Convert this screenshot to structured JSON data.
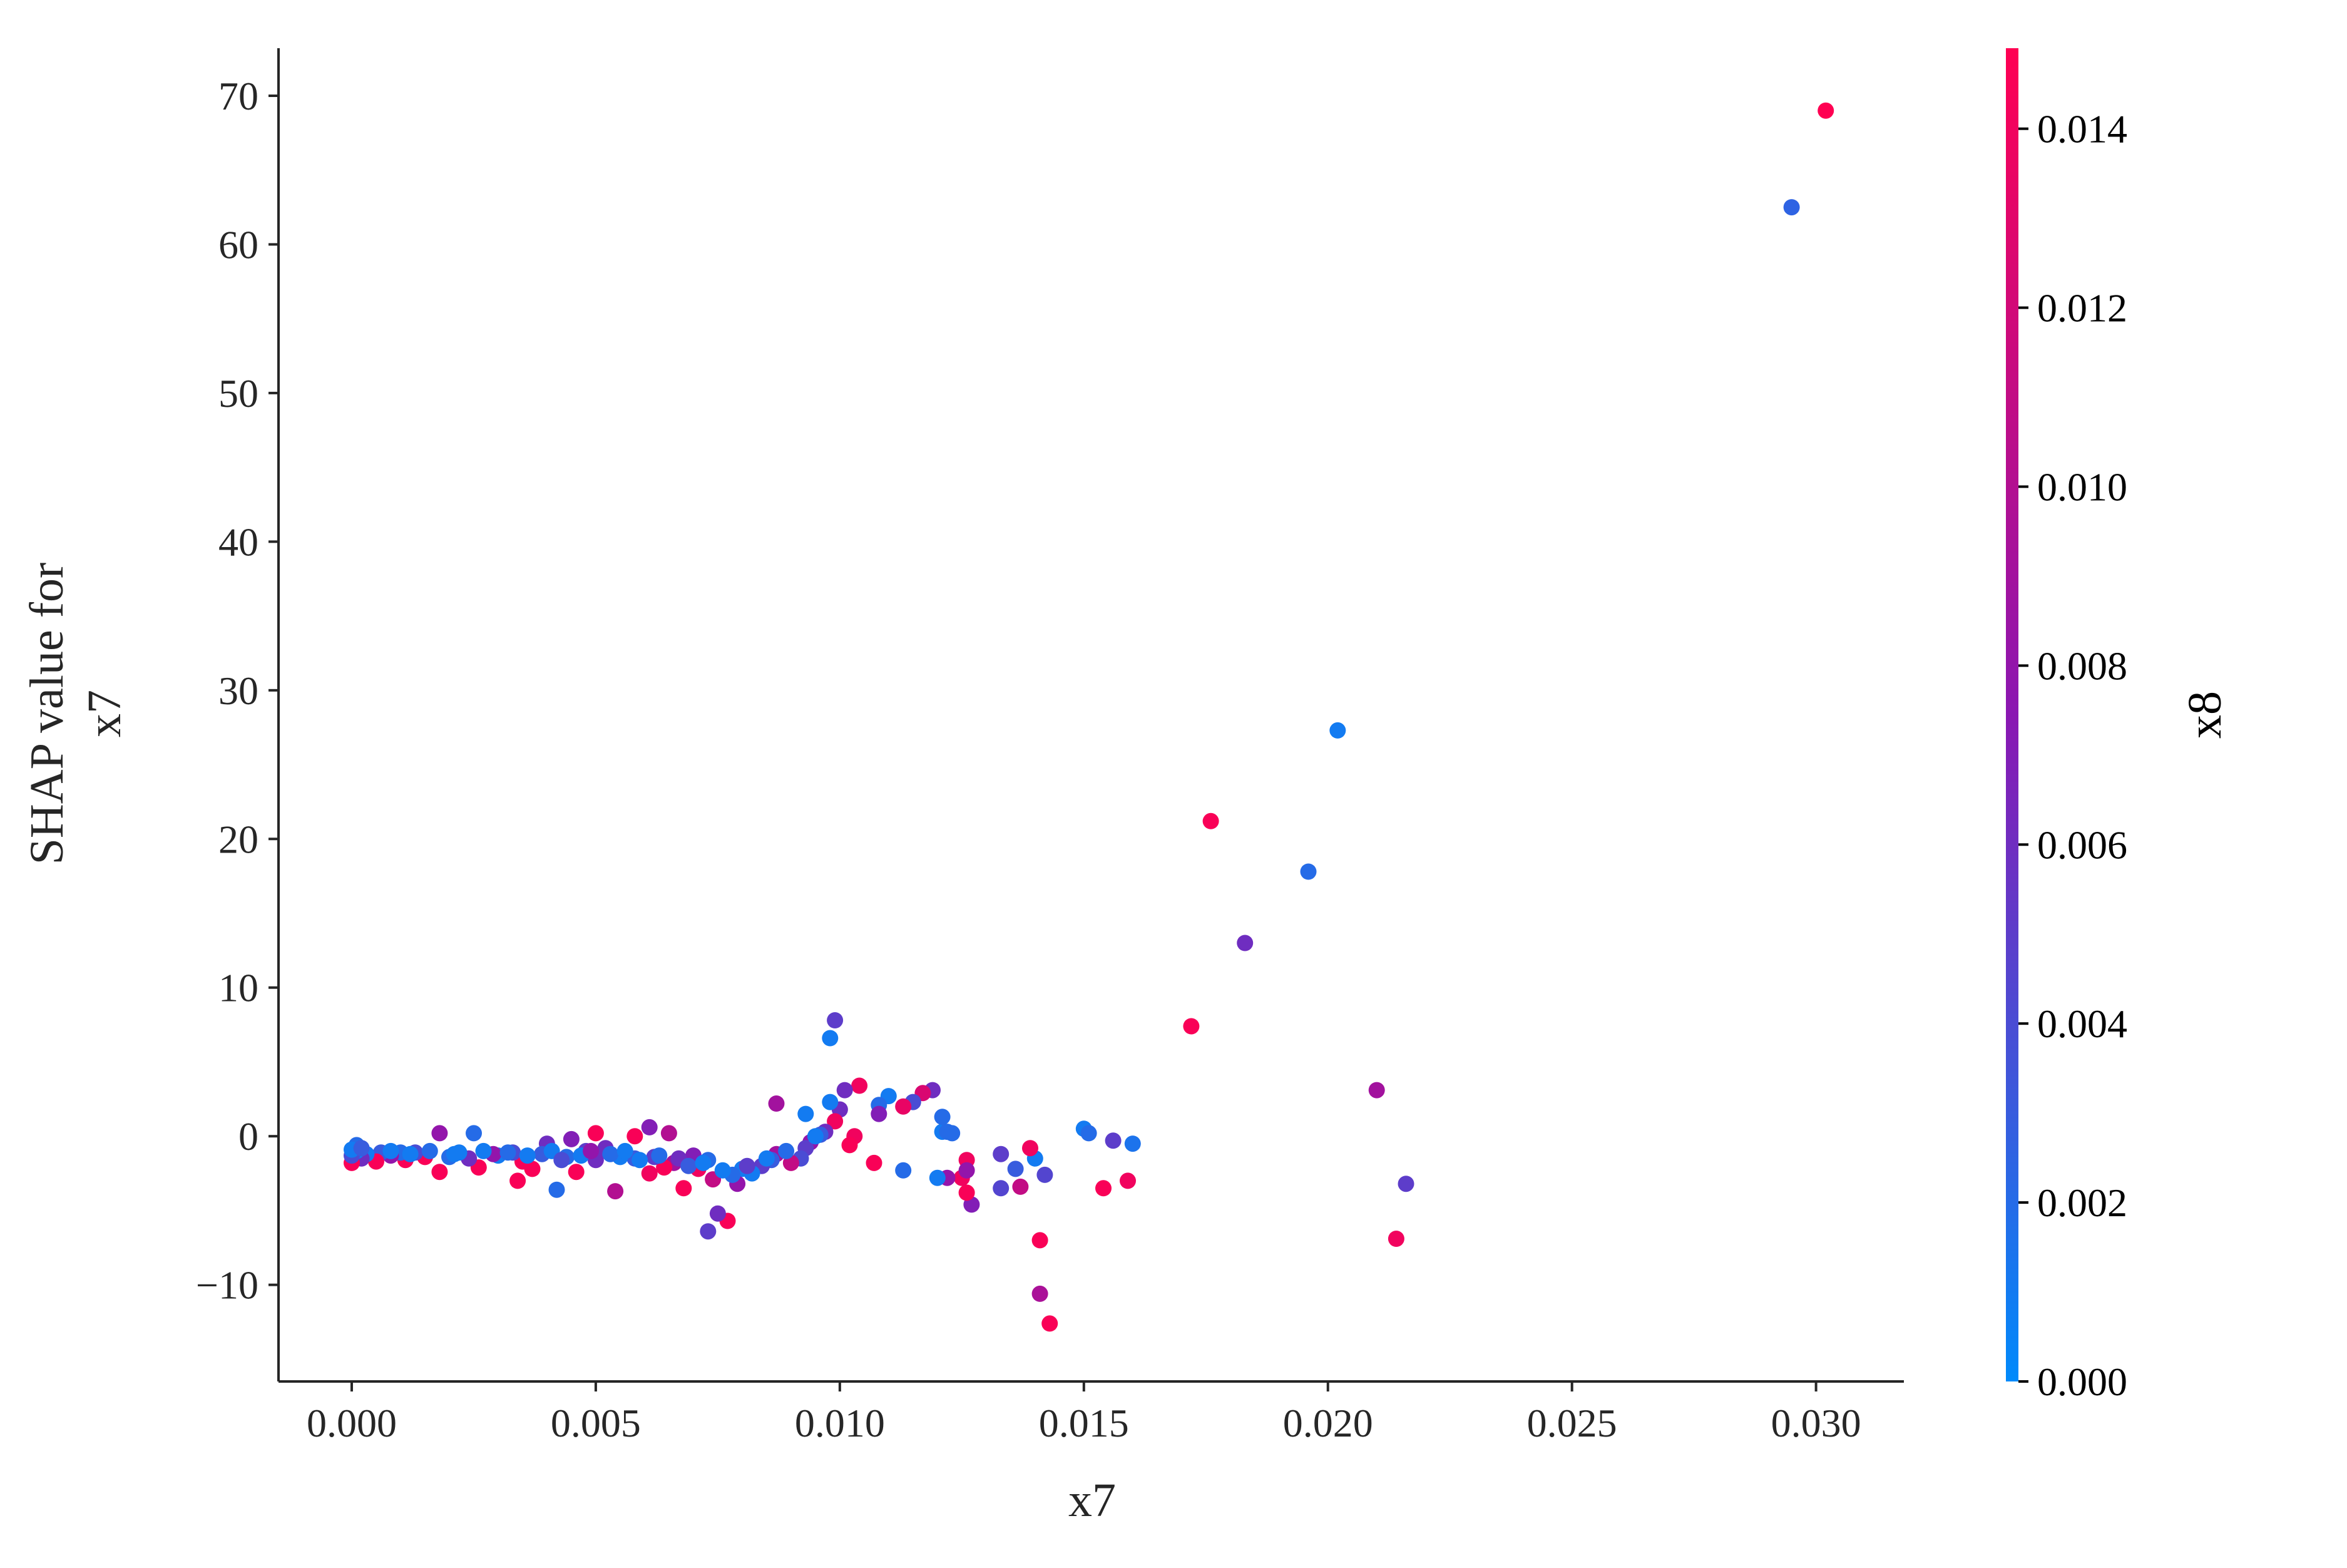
{
  "chart_data": {
    "type": "scatter",
    "title": "",
    "xlabel": "x7",
    "ylabel_lines": [
      "SHAP value for",
      "x7"
    ],
    "xlim": [
      -0.0015,
      0.0318
    ],
    "ylim": [
      -16.5,
      73.2
    ],
    "x_ticks": [
      0.0,
      0.005,
      0.01,
      0.015,
      0.02,
      0.025,
      0.03
    ],
    "x_tick_labels": [
      "0.000",
      "0.005",
      "0.010",
      "0.015",
      "0.020",
      "0.025",
      "0.030"
    ],
    "y_ticks": [
      -10,
      0,
      10,
      20,
      30,
      40,
      50,
      60,
      70
    ],
    "y_tick_labels": [
      "−10",
      "0",
      "10",
      "20",
      "30",
      "40",
      "50",
      "60",
      "70"
    ],
    "grid": false,
    "colorbar": {
      "label": "x8",
      "range": [
        0.0,
        0.0149
      ],
      "ticks": [
        0.0,
        0.002,
        0.004,
        0.006,
        0.008,
        0.01,
        0.012,
        0.014
      ],
      "tick_labels": [
        "0.000",
        "0.002",
        "0.004",
        "0.006",
        "0.008",
        "0.010",
        "0.012",
        "0.014"
      ],
      "low_color": "#008afb",
      "mid_color": "#8a17b2",
      "high_color": "#ff0052"
    },
    "points": [
      {
        "x": 0.0302,
        "y": 69.0,
        "c": 0.0149
      },
      {
        "x": 0.0295,
        "y": 62.5,
        "c": 0.0025
      },
      {
        "x": 0.0202,
        "y": 27.3,
        "c": 0.001
      },
      {
        "x": 0.0176,
        "y": 21.2,
        "c": 0.0145
      },
      {
        "x": 0.0196,
        "y": 17.8,
        "c": 0.002
      },
      {
        "x": 0.0183,
        "y": 13.0,
        "c": 0.006
      },
      {
        "x": 0.0172,
        "y": 7.4,
        "c": 0.0145
      },
      {
        "x": 0.021,
        "y": 3.1,
        "c": 0.009
      },
      {
        "x": 0.0216,
        "y": -3.2,
        "c": 0.005
      },
      {
        "x": 0.0214,
        "y": -6.9,
        "c": 0.014
      },
      {
        "x": 0.016,
        "y": -0.5,
        "c": 0.0015
      },
      {
        "x": 0.0156,
        "y": -0.3,
        "c": 0.005
      },
      {
        "x": 0.015,
        "y": 0.5,
        "c": 0.001
      },
      {
        "x": 0.0151,
        "y": 0.2,
        "c": 0.002
      },
      {
        "x": 0.0154,
        "y": -3.5,
        "c": 0.0145
      },
      {
        "x": 0.0159,
        "y": -3.0,
        "c": 0.014
      },
      {
        "x": 0.0143,
        "y": -12.6,
        "c": 0.0145
      },
      {
        "x": 0.0141,
        "y": -10.6,
        "c": 0.0095
      },
      {
        "x": 0.0141,
        "y": -7.0,
        "c": 0.0145
      },
      {
        "x": 0.0142,
        "y": -2.6,
        "c": 0.0045
      },
      {
        "x": 0.014,
        "y": -1.5,
        "c": 0.001
      },
      {
        "x": 0.0139,
        "y": -0.8,
        "c": 0.014
      },
      {
        "x": 0.0136,
        "y": -2.2,
        "c": 0.003
      },
      {
        "x": 0.0137,
        "y": -3.4,
        "c": 0.011
      },
      {
        "x": 0.0133,
        "y": -3.5,
        "c": 0.0045
      },
      {
        "x": 0.0133,
        "y": -1.2,
        "c": 0.005
      },
      {
        "x": 0.0127,
        "y": -4.6,
        "c": 0.007
      },
      {
        "x": 0.0126,
        "y": -3.8,
        "c": 0.0145
      },
      {
        "x": 0.0125,
        "y": -2.8,
        "c": 0.014
      },
      {
        "x": 0.0126,
        "y": -1.6,
        "c": 0.014
      },
      {
        "x": 0.0126,
        "y": -2.3,
        "c": 0.008
      },
      {
        "x": 0.0122,
        "y": -2.8,
        "c": 0.008
      },
      {
        "x": 0.012,
        "y": -2.8,
        "c": 0.001
      },
      {
        "x": 0.0113,
        "y": -2.3,
        "c": 0.002
      },
      {
        "x": 0.0121,
        "y": 0.3,
        "c": 0.001
      },
      {
        "x": 0.0122,
        "y": 0.3,
        "c": 0.002
      },
      {
        "x": 0.0123,
        "y": 0.2,
        "c": 0.002
      },
      {
        "x": 0.0121,
        "y": 1.3,
        "c": 0.002
      },
      {
        "x": 0.0119,
        "y": 3.1,
        "c": 0.006
      },
      {
        "x": 0.0117,
        "y": 2.9,
        "c": 0.0125
      },
      {
        "x": 0.0115,
        "y": 2.3,
        "c": 0.004
      },
      {
        "x": 0.0113,
        "y": 2.0,
        "c": 0.0135
      },
      {
        "x": 0.011,
        "y": 2.7,
        "c": 0.001
      },
      {
        "x": 0.0108,
        "y": 2.1,
        "c": 0.002
      },
      {
        "x": 0.0108,
        "y": 1.5,
        "c": 0.007
      },
      {
        "x": 0.0107,
        "y": -1.8,
        "c": 0.0145
      },
      {
        "x": 0.0104,
        "y": 3.4,
        "c": 0.014
      },
      {
        "x": 0.0101,
        "y": 3.1,
        "c": 0.006
      },
      {
        "x": 0.01,
        "y": 1.8,
        "c": 0.006
      },
      {
        "x": 0.0098,
        "y": 2.3,
        "c": 0.001
      },
      {
        "x": 0.0099,
        "y": 7.8,
        "c": 0.005
      },
      {
        "x": 0.0098,
        "y": 6.6,
        "c": 0.001
      },
      {
        "x": 0.0103,
        "y": 0.0,
        "c": 0.014
      },
      {
        "x": 0.0102,
        "y": -0.6,
        "c": 0.0145
      },
      {
        "x": 0.0099,
        "y": 1.0,
        "c": 0.014
      },
      {
        "x": 0.0097,
        "y": 0.3,
        "c": 0.006
      },
      {
        "x": 0.0096,
        "y": 0.1,
        "c": 0.003
      },
      {
        "x": 0.0094,
        "y": -0.4,
        "c": 0.008
      },
      {
        "x": 0.0093,
        "y": 1.5,
        "c": 0.001
      },
      {
        "x": 0.0093,
        "y": -0.8,
        "c": 0.005
      },
      {
        "x": 0.0092,
        "y": -1.5,
        "c": 0.004
      },
      {
        "x": 0.009,
        "y": -1.8,
        "c": 0.011
      },
      {
        "x": 0.0087,
        "y": 2.2,
        "c": 0.009
      },
      {
        "x": 0.0087,
        "y": -1.2,
        "c": 0.009
      },
      {
        "x": 0.0086,
        "y": -1.6,
        "c": 0.003
      },
      {
        "x": 0.0084,
        "y": -2.0,
        "c": 0.005
      },
      {
        "x": 0.0082,
        "y": -2.5,
        "c": 0.001
      },
      {
        "x": 0.008,
        "y": -2.2,
        "c": 0.001
      },
      {
        "x": 0.0079,
        "y": -3.2,
        "c": 0.008
      },
      {
        "x": 0.0078,
        "y": -2.6,
        "c": 0.002
      },
      {
        "x": 0.0077,
        "y": -5.7,
        "c": 0.0145
      },
      {
        "x": 0.0075,
        "y": -5.2,
        "c": 0.006
      },
      {
        "x": 0.0073,
        "y": -6.4,
        "c": 0.005
      },
      {
        "x": 0.0074,
        "y": -2.9,
        "c": 0.011
      },
      {
        "x": 0.0073,
        "y": -1.6,
        "c": 0.002
      },
      {
        "x": 0.0071,
        "y": -2.2,
        "c": 0.014
      },
      {
        "x": 0.007,
        "y": -1.3,
        "c": 0.007
      },
      {
        "x": 0.0068,
        "y": -3.5,
        "c": 0.0145
      },
      {
        "x": 0.0066,
        "y": -1.8,
        "c": 0.009
      },
      {
        "x": 0.0065,
        "y": 0.2,
        "c": 0.01
      },
      {
        "x": 0.0064,
        "y": -2.1,
        "c": 0.0145
      },
      {
        "x": 0.0062,
        "y": -1.4,
        "c": 0.005
      },
      {
        "x": 0.0061,
        "y": 0.6,
        "c": 0.007
      },
      {
        "x": 0.0061,
        "y": -2.5,
        "c": 0.014
      },
      {
        "x": 0.0058,
        "y": 0.0,
        "c": 0.0145
      },
      {
        "x": 0.0058,
        "y": -1.5,
        "c": 0.003
      },
      {
        "x": 0.0055,
        "y": -1.4,
        "c": 0.001
      },
      {
        "x": 0.0054,
        "y": -3.7,
        "c": 0.01
      },
      {
        "x": 0.0052,
        "y": -0.8,
        "c": 0.006
      },
      {
        "x": 0.005,
        "y": 0.2,
        "c": 0.0145
      },
      {
        "x": 0.005,
        "y": -1.6,
        "c": 0.006
      },
      {
        "x": 0.0048,
        "y": -1.0,
        "c": 0.005
      },
      {
        "x": 0.0046,
        "y": -2.4,
        "c": 0.0145
      },
      {
        "x": 0.0045,
        "y": -0.2,
        "c": 0.007
      },
      {
        "x": 0.0044,
        "y": -1.4,
        "c": 0.002
      },
      {
        "x": 0.0042,
        "y": -3.6,
        "c": 0.002
      },
      {
        "x": 0.004,
        "y": -0.5,
        "c": 0.006
      },
      {
        "x": 0.0039,
        "y": -1.2,
        "c": 0.003
      },
      {
        "x": 0.0037,
        "y": -2.2,
        "c": 0.0145
      },
      {
        "x": 0.0035,
        "y": -1.7,
        "c": 0.0145
      },
      {
        "x": 0.0034,
        "y": -3.0,
        "c": 0.0145
      },
      {
        "x": 0.0033,
        "y": -1.1,
        "c": 0.004
      },
      {
        "x": 0.003,
        "y": -1.3,
        "c": 0.001
      },
      {
        "x": 0.0029,
        "y": -1.2,
        "c": 0.008
      },
      {
        "x": 0.0026,
        "y": -2.1,
        "c": 0.0145
      },
      {
        "x": 0.0025,
        "y": 0.2,
        "c": 0.002
      },
      {
        "x": 0.0024,
        "y": -1.5,
        "c": 0.006
      },
      {
        "x": 0.0022,
        "y": -1.1,
        "c": 0.001
      },
      {
        "x": 0.002,
        "y": -1.4,
        "c": 0.002
      },
      {
        "x": 0.0018,
        "y": 0.2,
        "c": 0.008
      },
      {
        "x": 0.0018,
        "y": -2.4,
        "c": 0.0145
      },
      {
        "x": 0.0015,
        "y": -1.4,
        "c": 0.0145
      },
      {
        "x": 0.0013,
        "y": -1.1,
        "c": 0.004
      },
      {
        "x": 0.0011,
        "y": -1.6,
        "c": 0.0145
      },
      {
        "x": 0.001,
        "y": -1.1,
        "c": 0.002
      },
      {
        "x": 0.0008,
        "y": -1.3,
        "c": 0.008
      },
      {
        "x": 0.0006,
        "y": -1.1,
        "c": 0.003
      },
      {
        "x": 0.0005,
        "y": -1.7,
        "c": 0.0145
      },
      {
        "x": 0.0003,
        "y": -1.2,
        "c": 0.001
      },
      {
        "x": 0.0002,
        "y": -1.5,
        "c": 0.006
      },
      {
        "x": 0.0001,
        "y": -1.0,
        "c": 0.001
      },
      {
        "x": 0.0001,
        "y": -0.6,
        "c": 0.002
      },
      {
        "x": 0.0,
        "y": -1.8,
        "c": 0.0145
      },
      {
        "x": 0.0,
        "y": -1.3,
        "c": 0.004
      },
      {
        "x": 0.0,
        "y": -0.9,
        "c": 0.001
      },
      {
        "x": 0.0002,
        "y": -0.8,
        "c": 0.003
      },
      {
        "x": 0.0008,
        "y": -1.0,
        "c": 0.001
      },
      {
        "x": 0.0012,
        "y": -1.2,
        "c": 0.001
      },
      {
        "x": 0.0016,
        "y": -1.0,
        "c": 0.002
      },
      {
        "x": 0.0021,
        "y": -1.2,
        "c": 0.001
      },
      {
        "x": 0.0027,
        "y": -1.0,
        "c": 0.001
      },
      {
        "x": 0.0032,
        "y": -1.1,
        "c": 0.002
      },
      {
        "x": 0.0036,
        "y": -1.3,
        "c": 0.001
      },
      {
        "x": 0.0041,
        "y": -1.0,
        "c": 0.001
      },
      {
        "x": 0.0043,
        "y": -1.6,
        "c": 0.004
      },
      {
        "x": 0.0047,
        "y": -1.3,
        "c": 0.001
      },
      {
        "x": 0.0049,
        "y": -1.0,
        "c": 0.008
      },
      {
        "x": 0.0053,
        "y": -1.2,
        "c": 0.002
      },
      {
        "x": 0.0056,
        "y": -1.0,
        "c": 0.001
      },
      {
        "x": 0.0059,
        "y": -1.6,
        "c": 0.001
      },
      {
        "x": 0.0063,
        "y": -1.3,
        "c": 0.002
      },
      {
        "x": 0.0067,
        "y": -1.5,
        "c": 0.006
      },
      {
        "x": 0.0069,
        "y": -2.0,
        "c": 0.003
      },
      {
        "x": 0.0072,
        "y": -1.8,
        "c": 0.001
      },
      {
        "x": 0.0076,
        "y": -2.3,
        "c": 0.001
      },
      {
        "x": 0.0081,
        "y": -2.0,
        "c": 0.005
      },
      {
        "x": 0.0085,
        "y": -1.5,
        "c": 0.001
      },
      {
        "x": 0.0089,
        "y": -1.0,
        "c": 0.002
      },
      {
        "x": 0.0095,
        "y": 0.0,
        "c": 0.001
      }
    ]
  }
}
